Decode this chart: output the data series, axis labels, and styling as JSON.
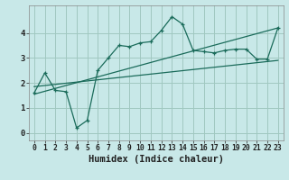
{
  "xlabel": "Humidex (Indice chaleur)",
  "bg_color": "#c8e8e8",
  "line_color": "#1a6b5a",
  "grid_color": "#a0c8c0",
  "xlim": [
    -0.5,
    23.5
  ],
  "ylim": [
    -0.3,
    5.1
  ],
  "xticks": [
    0,
    1,
    2,
    3,
    4,
    5,
    6,
    7,
    8,
    9,
    10,
    11,
    12,
    13,
    14,
    15,
    16,
    17,
    18,
    19,
    20,
    21,
    22,
    23
  ],
  "yticks": [
    0,
    1,
    2,
    3,
    4
  ],
  "scatter_line_data": [
    [
      0,
      1.6
    ],
    [
      1,
      2.4
    ],
    [
      2,
      1.7
    ],
    [
      3,
      1.65
    ],
    [
      4,
      0.2
    ],
    [
      5,
      0.5
    ],
    [
      6,
      2.5
    ],
    [
      7,
      3.0
    ],
    [
      8,
      3.5
    ],
    [
      9,
      3.45
    ],
    [
      10,
      3.6
    ],
    [
      11,
      3.65
    ],
    [
      12,
      4.1
    ],
    [
      13,
      4.65
    ],
    [
      14,
      4.35
    ],
    [
      15,
      3.3
    ],
    [
      16,
      3.25
    ],
    [
      17,
      3.2
    ],
    [
      18,
      3.3
    ],
    [
      19,
      3.35
    ],
    [
      20,
      3.35
    ],
    [
      21,
      2.95
    ],
    [
      22,
      2.95
    ],
    [
      23,
      4.2
    ]
  ],
  "regression_line1": [
    [
      0,
      1.55
    ],
    [
      23,
      4.2
    ]
  ],
  "regression_line2": [
    [
      0,
      1.85
    ],
    [
      23,
      2.9
    ]
  ]
}
